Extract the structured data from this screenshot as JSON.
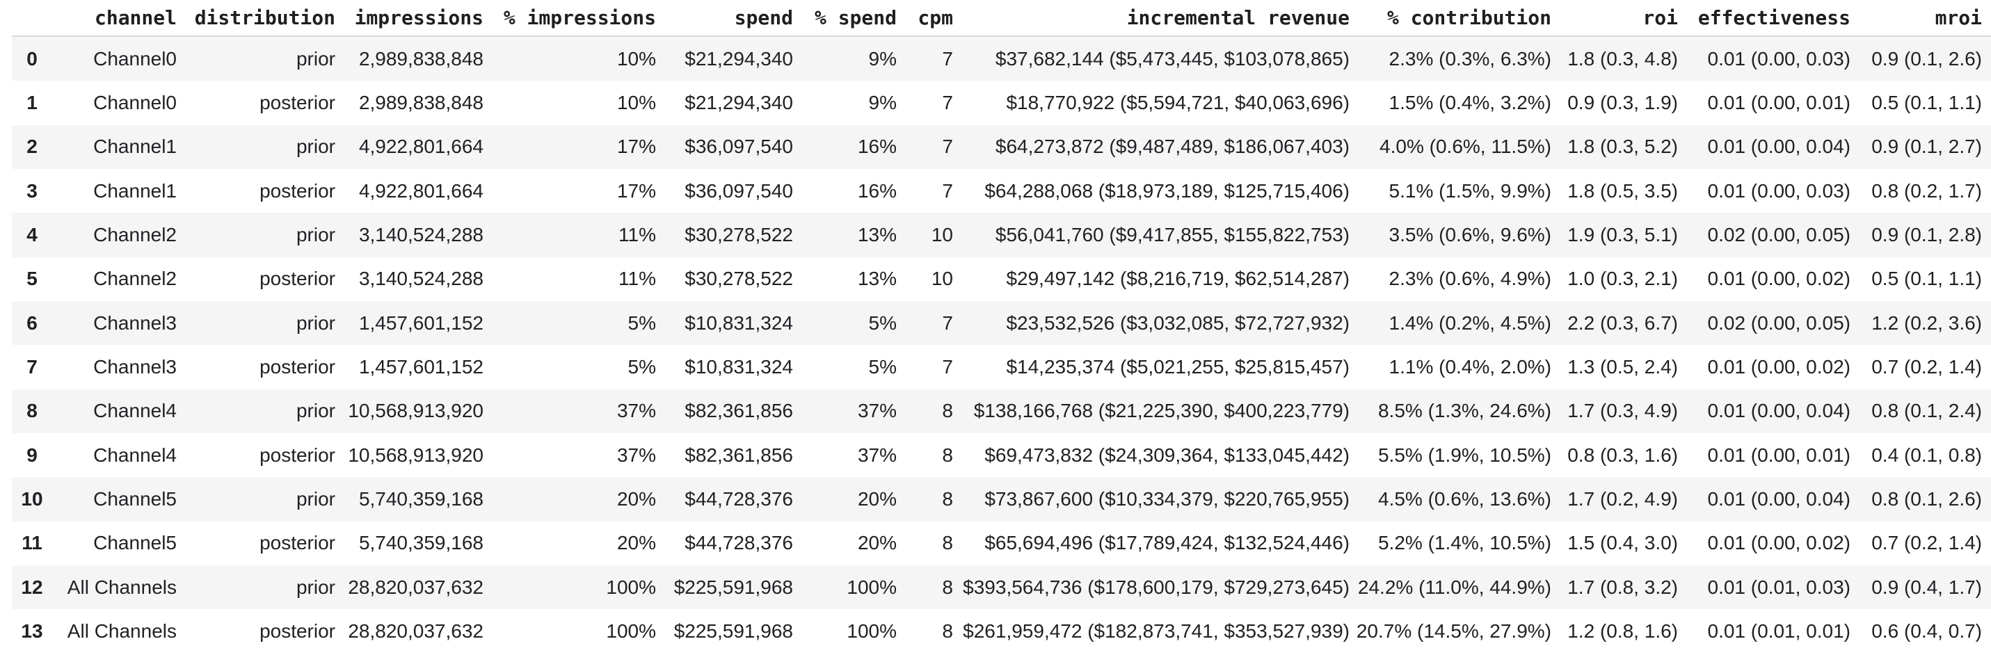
{
  "colors": {
    "stripe": "#f5f5f6",
    "header_border": "#d9d9d9",
    "text": "#202124",
    "background": "#ffffff"
  },
  "table": {
    "description": "media channel summary table with prior and posterior distributions",
    "columns": [
      {
        "key": "index",
        "label": ""
      },
      {
        "key": "channel",
        "label": "channel"
      },
      {
        "key": "distribution",
        "label": "distribution"
      },
      {
        "key": "impressions",
        "label": "impressions"
      },
      {
        "key": "pct_impressions",
        "label": "% impressions"
      },
      {
        "key": "spend",
        "label": "spend"
      },
      {
        "key": "pct_spend",
        "label": "% spend"
      },
      {
        "key": "cpm",
        "label": "cpm"
      },
      {
        "key": "incremental_revenue",
        "label": "incremental revenue"
      },
      {
        "key": "pct_contribution",
        "label": "% contribution"
      },
      {
        "key": "roi",
        "label": "roi"
      },
      {
        "key": "effectiveness",
        "label": "effectiveness"
      },
      {
        "key": "mroi",
        "label": "mroi"
      }
    ],
    "rows": [
      {
        "index": "0",
        "channel": "Channel0",
        "distribution": "prior",
        "impressions": "2,989,838,848",
        "pct_impressions": "10%",
        "spend": "$21,294,340",
        "pct_spend": "9%",
        "cpm": "7",
        "incremental_revenue": "$37,682,144 ($5,473,445, $103,078,865)",
        "pct_contribution": "2.3% (0.3%, 6.3%)",
        "roi": "1.8 (0.3, 4.8)",
        "effectiveness": "0.01 (0.00, 0.03)",
        "mroi": "0.9 (0.1, 2.6)"
      },
      {
        "index": "1",
        "channel": "Channel0",
        "distribution": "posterior",
        "impressions": "2,989,838,848",
        "pct_impressions": "10%",
        "spend": "$21,294,340",
        "pct_spend": "9%",
        "cpm": "7",
        "incremental_revenue": "$18,770,922 ($5,594,721, $40,063,696)",
        "pct_contribution": "1.5% (0.4%, 3.2%)",
        "roi": "0.9 (0.3, 1.9)",
        "effectiveness": "0.01 (0.00, 0.01)",
        "mroi": "0.5 (0.1, 1.1)"
      },
      {
        "index": "2",
        "channel": "Channel1",
        "distribution": "prior",
        "impressions": "4,922,801,664",
        "pct_impressions": "17%",
        "spend": "$36,097,540",
        "pct_spend": "16%",
        "cpm": "7",
        "incremental_revenue": "$64,273,872 ($9,487,489, $186,067,403)",
        "pct_contribution": "4.0% (0.6%, 11.5%)",
        "roi": "1.8 (0.3, 5.2)",
        "effectiveness": "0.01 (0.00, 0.04)",
        "mroi": "0.9 (0.1, 2.7)"
      },
      {
        "index": "3",
        "channel": "Channel1",
        "distribution": "posterior",
        "impressions": "4,922,801,664",
        "pct_impressions": "17%",
        "spend": "$36,097,540",
        "pct_spend": "16%",
        "cpm": "7",
        "incremental_revenue": "$64,288,068 ($18,973,189, $125,715,406)",
        "pct_contribution": "5.1% (1.5%, 9.9%)",
        "roi": "1.8 (0.5, 3.5)",
        "effectiveness": "0.01 (0.00, 0.03)",
        "mroi": "0.8 (0.2, 1.7)"
      },
      {
        "index": "4",
        "channel": "Channel2",
        "distribution": "prior",
        "impressions": "3,140,524,288",
        "pct_impressions": "11%",
        "spend": "$30,278,522",
        "pct_spend": "13%",
        "cpm": "10",
        "incremental_revenue": "$56,041,760 ($9,417,855, $155,822,753)",
        "pct_contribution": "3.5% (0.6%, 9.6%)",
        "roi": "1.9 (0.3, 5.1)",
        "effectiveness": "0.02 (0.00, 0.05)",
        "mroi": "0.9 (0.1, 2.8)"
      },
      {
        "index": "5",
        "channel": "Channel2",
        "distribution": "posterior",
        "impressions": "3,140,524,288",
        "pct_impressions": "11%",
        "spend": "$30,278,522",
        "pct_spend": "13%",
        "cpm": "10",
        "incremental_revenue": "$29,497,142 ($8,216,719, $62,514,287)",
        "pct_contribution": "2.3% (0.6%, 4.9%)",
        "roi": "1.0 (0.3, 2.1)",
        "effectiveness": "0.01 (0.00, 0.02)",
        "mroi": "0.5 (0.1, 1.1)"
      },
      {
        "index": "6",
        "channel": "Channel3",
        "distribution": "prior",
        "impressions": "1,457,601,152",
        "pct_impressions": "5%",
        "spend": "$10,831,324",
        "pct_spend": "5%",
        "cpm": "7",
        "incremental_revenue": "$23,532,526 ($3,032,085, $72,727,932)",
        "pct_contribution": "1.4% (0.2%, 4.5%)",
        "roi": "2.2 (0.3, 6.7)",
        "effectiveness": "0.02 (0.00, 0.05)",
        "mroi": "1.2 (0.2, 3.6)"
      },
      {
        "index": "7",
        "channel": "Channel3",
        "distribution": "posterior",
        "impressions": "1,457,601,152",
        "pct_impressions": "5%",
        "spend": "$10,831,324",
        "pct_spend": "5%",
        "cpm": "7",
        "incremental_revenue": "$14,235,374 ($5,021,255, $25,815,457)",
        "pct_contribution": "1.1% (0.4%, 2.0%)",
        "roi": "1.3 (0.5, 2.4)",
        "effectiveness": "0.01 (0.00, 0.02)",
        "mroi": "0.7 (0.2, 1.4)"
      },
      {
        "index": "8",
        "channel": "Channel4",
        "distribution": "prior",
        "impressions": "10,568,913,920",
        "pct_impressions": "37%",
        "spend": "$82,361,856",
        "pct_spend": "37%",
        "cpm": "8",
        "incremental_revenue": "$138,166,768 ($21,225,390, $400,223,779)",
        "pct_contribution": "8.5% (1.3%, 24.6%)",
        "roi": "1.7 (0.3, 4.9)",
        "effectiveness": "0.01 (0.00, 0.04)",
        "mroi": "0.8 (0.1, 2.4)"
      },
      {
        "index": "9",
        "channel": "Channel4",
        "distribution": "posterior",
        "impressions": "10,568,913,920",
        "pct_impressions": "37%",
        "spend": "$82,361,856",
        "pct_spend": "37%",
        "cpm": "8",
        "incremental_revenue": "$69,473,832 ($24,309,364, $133,045,442)",
        "pct_contribution": "5.5% (1.9%, 10.5%)",
        "roi": "0.8 (0.3, 1.6)",
        "effectiveness": "0.01 (0.00, 0.01)",
        "mroi": "0.4 (0.1, 0.8)"
      },
      {
        "index": "10",
        "channel": "Channel5",
        "distribution": "prior",
        "impressions": "5,740,359,168",
        "pct_impressions": "20%",
        "spend": "$44,728,376",
        "pct_spend": "20%",
        "cpm": "8",
        "incremental_revenue": "$73,867,600 ($10,334,379, $220,765,955)",
        "pct_contribution": "4.5% (0.6%, 13.6%)",
        "roi": "1.7 (0.2, 4.9)",
        "effectiveness": "0.01 (0.00, 0.04)",
        "mroi": "0.8 (0.1, 2.6)"
      },
      {
        "index": "11",
        "channel": "Channel5",
        "distribution": "posterior",
        "impressions": "5,740,359,168",
        "pct_impressions": "20%",
        "spend": "$44,728,376",
        "pct_spend": "20%",
        "cpm": "8",
        "incremental_revenue": "$65,694,496 ($17,789,424, $132,524,446)",
        "pct_contribution": "5.2% (1.4%, 10.5%)",
        "roi": "1.5 (0.4, 3.0)",
        "effectiveness": "0.01 (0.00, 0.02)",
        "mroi": "0.7 (0.2, 1.4)"
      },
      {
        "index": "12",
        "channel": "All Channels",
        "distribution": "prior",
        "impressions": "28,820,037,632",
        "pct_impressions": "100%",
        "spend": "$225,591,968",
        "pct_spend": "100%",
        "cpm": "8",
        "incremental_revenue": "$393,564,736 ($178,600,179, $729,273,645)",
        "pct_contribution": "24.2% (11.0%, 44.9%)",
        "roi": "1.7 (0.8, 3.2)",
        "effectiveness": "0.01 (0.01, 0.03)",
        "mroi": "0.9 (0.4, 1.7)"
      },
      {
        "index": "13",
        "channel": "All Channels",
        "distribution": "posterior",
        "impressions": "28,820,037,632",
        "pct_impressions": "100%",
        "spend": "$225,591,968",
        "pct_spend": "100%",
        "cpm": "8",
        "incremental_revenue": "$261,959,472 ($182,873,741, $353,527,939)",
        "pct_contribution": "20.7% (14.5%, 27.9%)",
        "roi": "1.2 (0.8, 1.6)",
        "effectiveness": "0.01 (0.01, 0.01)",
        "mroi": "0.6 (0.4, 0.7)"
      }
    ]
  }
}
